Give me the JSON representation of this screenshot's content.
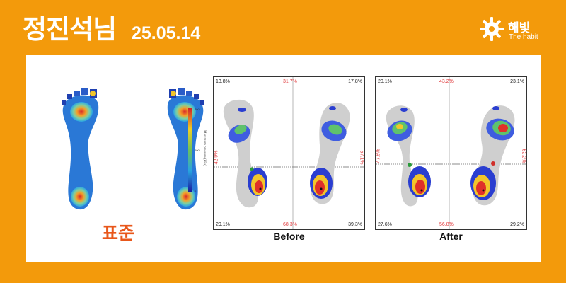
{
  "header": {
    "name": "정진석님",
    "date": "25.05.14"
  },
  "brand": {
    "name": "해빛",
    "sub": "The habit",
    "logo_icon": "gear-sun-icon"
  },
  "standard": {
    "label": "표준",
    "colorbar_label": "Maximum pressure (kPa)",
    "colorbar_ticks": [
      "400",
      "200",
      "0"
    ]
  },
  "before": {
    "caption": "Before",
    "top_left": "13.8%",
    "top_mid": "31.7%",
    "top_right": "17.8%",
    "mid_left": "42.9%",
    "mid_right": "57.1%",
    "bottom_left": "29.1%",
    "bottom_mid": "68.3%",
    "bottom_right": "39.3%"
  },
  "after": {
    "caption": "After",
    "top_left": "20.1%",
    "top_mid": "43.2%",
    "top_right": "23.1%",
    "mid_left": "47.8%",
    "mid_right": "52.2%",
    "bottom_left": "27.6%",
    "bottom_mid": "56.8%",
    "bottom_right": "29.2%"
  },
  "colors": {
    "background": "#F39A0B",
    "accent": "#E8571B",
    "panel": "#FFFFFF"
  }
}
